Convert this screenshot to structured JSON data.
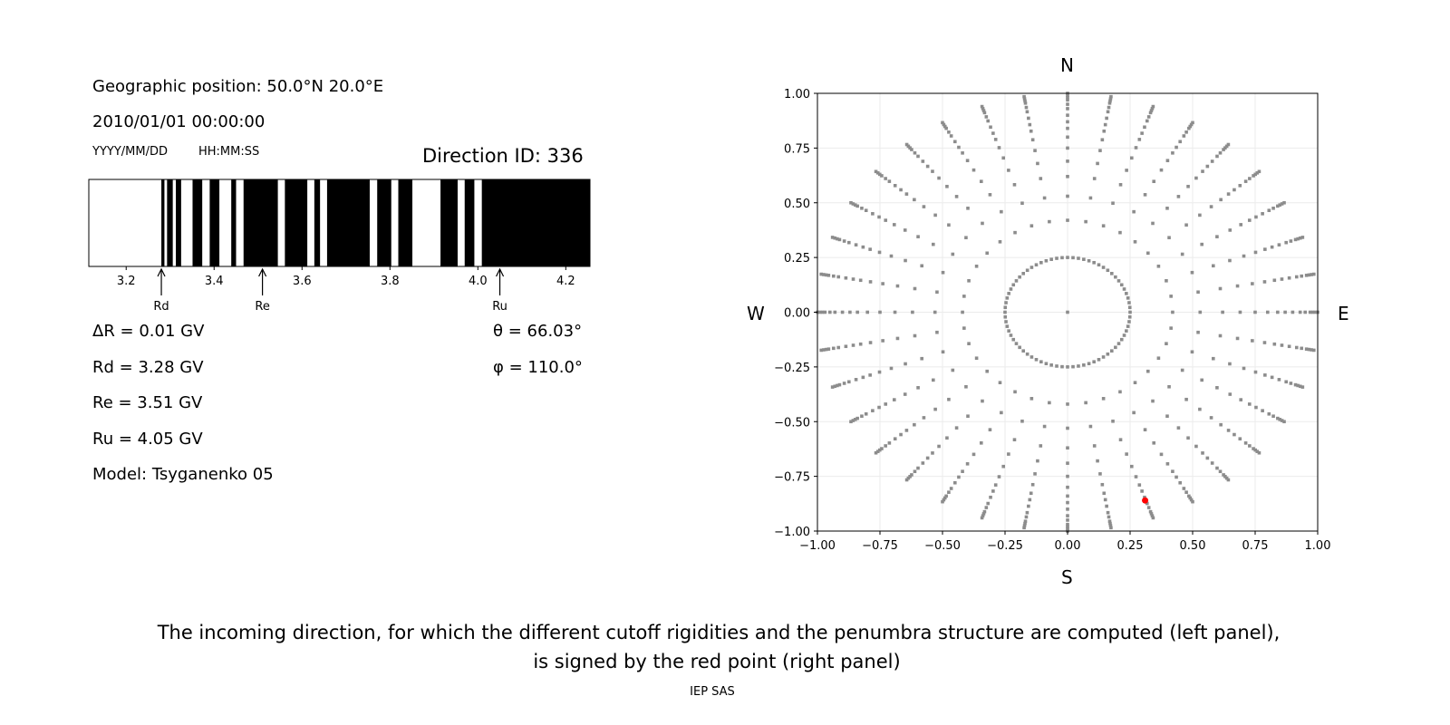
{
  "left_panel": {
    "position_line": "Geographic position: 50.0°N 20.0°E",
    "datetime": "2010/01/01 00:00:00",
    "date_format": "YYYY/MM/DD",
    "time_format": "HH:MM:SS",
    "direction_id": "Direction ID: 336",
    "delta_r": "ΔR = 0.01 GV",
    "rd": "Rd = 3.28 GV",
    "re": "Re = 3.51 GV",
    "ru": "Ru = 4.05 GV",
    "model": "Model: Tsyganenko 05",
    "theta": "θ = 66.03°",
    "phi": "φ = 110.0°"
  },
  "compass": {
    "n": "N",
    "s": "S",
    "w": "W",
    "e": "E"
  },
  "caption": {
    "line1": "The incoming direction, for which the different cutoff rigidities and the penumbra structure are computed (left panel),",
    "line2": "is signed by the red point (right panel)",
    "credit": "IEP SAS"
  },
  "chart_data": [
    {
      "type": "bar",
      "subtype": "penumbra",
      "xlim": [
        3.115,
        4.255
      ],
      "x_ticks": [
        "3.2",
        "3.4",
        "3.6",
        "3.8",
        "4.0",
        "4.2"
      ],
      "x_tick_values": [
        3.2,
        3.4,
        3.6,
        3.8,
        4.0,
        4.2
      ],
      "allowed_color": "#ffffff",
      "forbidden_color": "#000000",
      "allowed_intervals": [
        [
          3.115,
          3.28
        ],
        [
          3.287,
          3.293
        ],
        [
          3.306,
          3.313
        ],
        [
          3.325,
          3.351
        ],
        [
          3.373,
          3.39
        ],
        [
          3.412,
          3.439
        ],
        [
          3.45,
          3.467
        ],
        [
          3.545,
          3.561
        ],
        [
          3.612,
          3.628
        ],
        [
          3.641,
          3.657
        ],
        [
          3.754,
          3.771
        ],
        [
          3.803,
          3.819
        ],
        [
          3.851,
          3.915
        ],
        [
          3.954,
          3.97
        ],
        [
          3.992,
          4.009
        ]
      ],
      "markers": [
        {
          "label": "Rd",
          "value": 3.28
        },
        {
          "label": "Re",
          "value": 3.51
        },
        {
          "label": "Ru",
          "value": 4.05
        }
      ]
    },
    {
      "type": "scatter",
      "xlim": [
        -1.0,
        1.0
      ],
      "ylim": [
        -1.0,
        1.0
      ],
      "grid": true,
      "x_ticks": [
        "−1.00",
        "−0.75",
        "−0.50",
        "−0.25",
        "0.00",
        "0.25",
        "0.50",
        "0.75",
        "1.00"
      ],
      "y_ticks": [
        "1.00",
        "0.75",
        "0.50",
        "0.25",
        "0.00",
        "−0.25",
        "−0.50",
        "−0.75",
        "−1.00"
      ],
      "tick_values": [
        -1.0,
        -0.75,
        -0.5,
        -0.25,
        0,
        0.25,
        0.5,
        0.75,
        1.0
      ],
      "point_color": "#8c8c8c",
      "center_point": [
        0,
        0
      ],
      "ring_radius": 0.25,
      "ring_azimuth_step_deg": 5,
      "spoke_azimuth_step_deg": 10,
      "spoke_radii": [
        0.42,
        0.53,
        0.62,
        0.69,
        0.75,
        0.8,
        0.84,
        0.87,
        0.9,
        0.93,
        0.95,
        0.97,
        0.98,
        0.99,
        1.0
      ],
      "highlight": {
        "x": 0.31,
        "y": -0.86,
        "color": "#ff0000"
      }
    }
  ]
}
